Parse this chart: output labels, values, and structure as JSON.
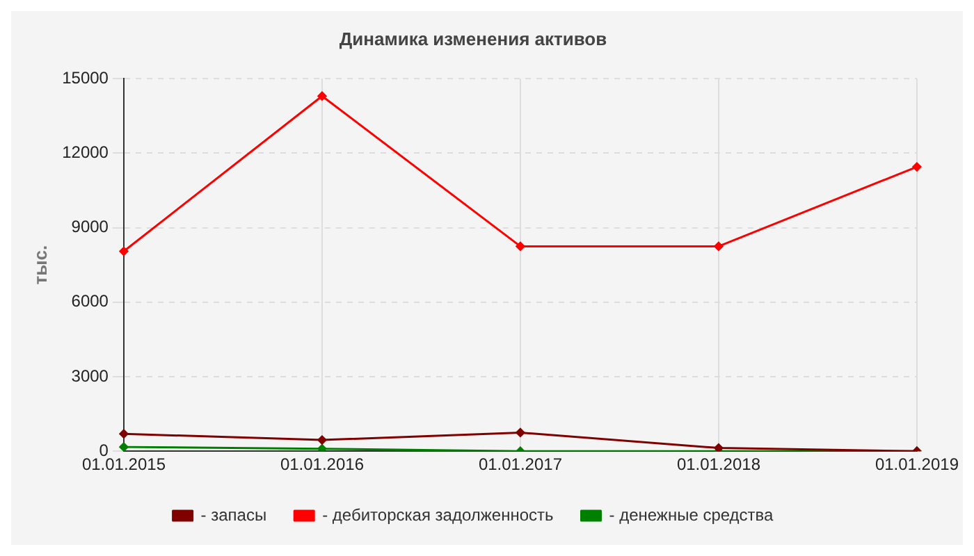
{
  "chart_data": {
    "type": "line",
    "title": "Динамика изменения активов",
    "ylabel": "тыс.",
    "categories": [
      "01.01.2015",
      "01.01.2016",
      "01.01.2017",
      "01.01.2018",
      "01.01.2019"
    ],
    "series": [
      {
        "name": "- запасы",
        "color": "#800000",
        "values": [
          700,
          450,
          750,
          130,
          0
        ]
      },
      {
        "name": "- дебиторская задолженность",
        "color": "#ff0000",
        "values": [
          8050,
          14300,
          8250,
          8250,
          11450
        ]
      },
      {
        "name": "- денежные средства",
        "color": "#008000",
        "values": [
          170,
          100,
          0,
          0,
          0
        ]
      }
    ],
    "ylim": [
      0,
      15000
    ],
    "yticks": [
      0,
      3000,
      6000,
      9000,
      12000,
      15000
    ],
    "grid": true,
    "legend": "bottom",
    "marker": "diamond",
    "line_style": "solid"
  }
}
